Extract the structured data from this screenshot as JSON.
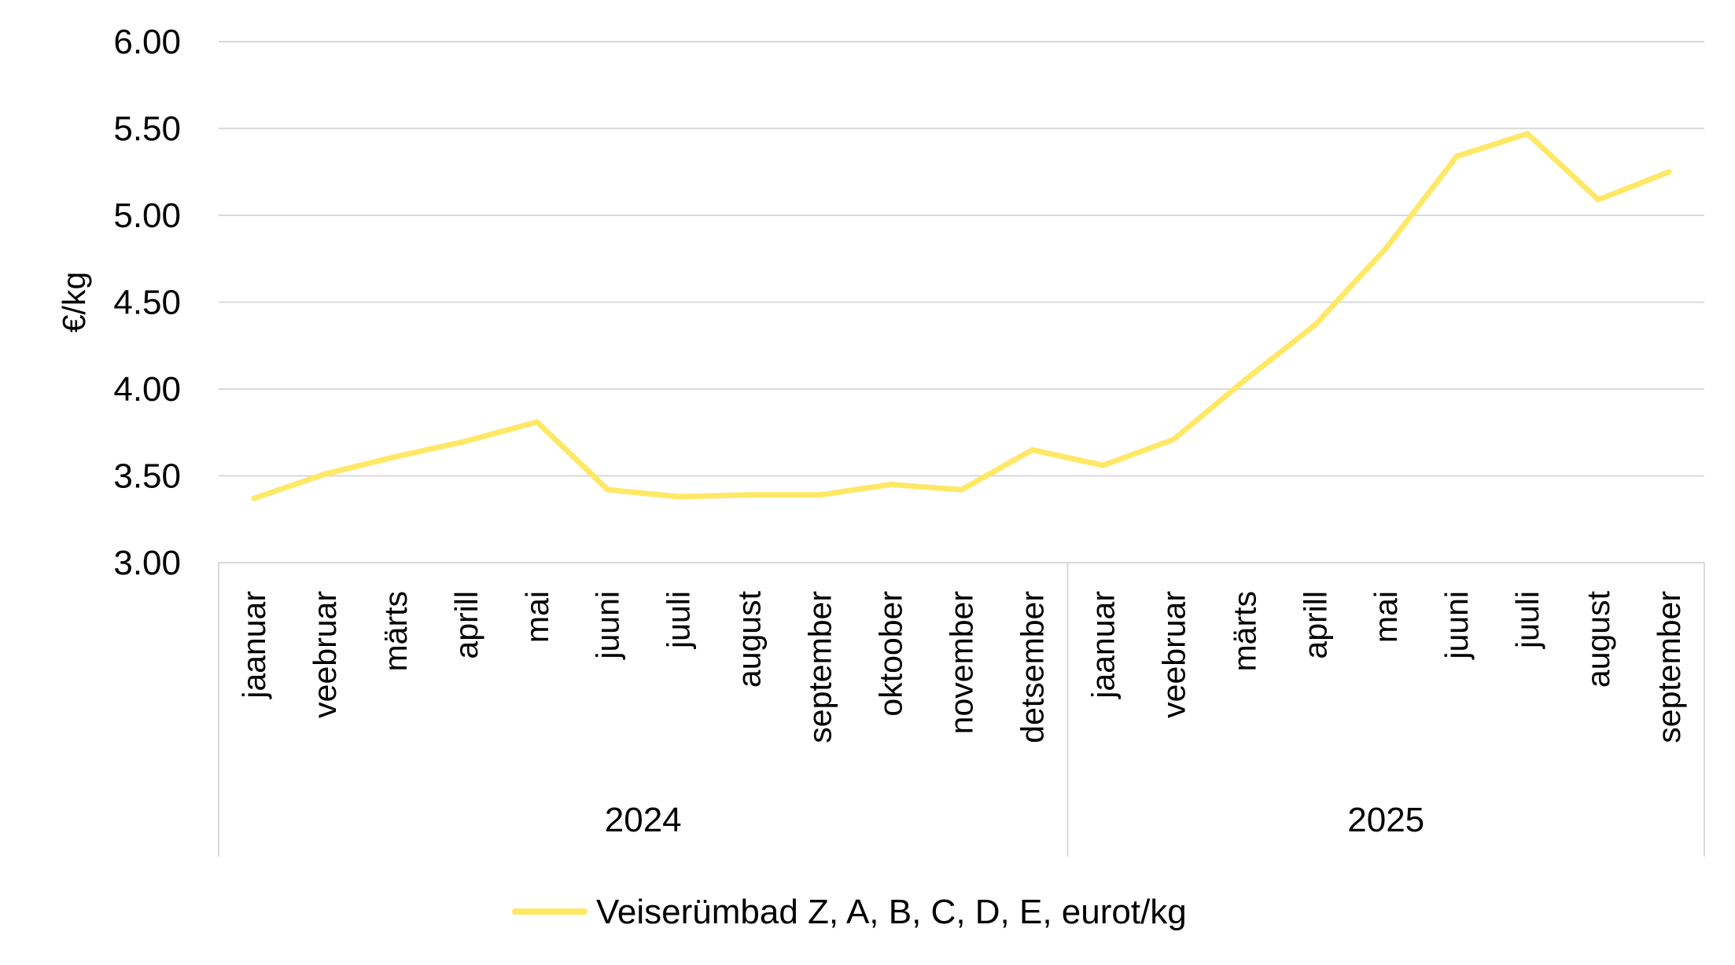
{
  "chart_data": {
    "type": "line",
    "title": "",
    "xlabel": "",
    "ylabel": "€/kg",
    "ylim": [
      3.0,
      6.0
    ],
    "yticks": [
      "3.00",
      "3.50",
      "4.00",
      "4.50",
      "5.00",
      "5.50",
      "6.00"
    ],
    "ytick_values": [
      3.0,
      3.5,
      4.0,
      4.5,
      5.0,
      5.5,
      6.0
    ],
    "grid": true,
    "legend_position": "bottom",
    "categories": [
      "jaanuar",
      "veebruar",
      "märts",
      "aprill",
      "mai",
      "juuni",
      "juuli",
      "august",
      "september",
      "oktoober",
      "november",
      "detsember",
      "jaanuar",
      "veebruar",
      "märts",
      "aprill",
      "mai",
      "juuni",
      "juuli",
      "august",
      "september"
    ],
    "groups": [
      {
        "label": "2024",
        "count": 12
      },
      {
        "label": "2025",
        "count": 9
      }
    ],
    "series": [
      {
        "name": "Veiserümbad Z, A, B, C, D, E, eurot/kg",
        "color": "#ffe866",
        "values": [
          3.37,
          3.51,
          3.61,
          3.7,
          3.81,
          3.42,
          3.38,
          3.39,
          3.39,
          3.45,
          3.42,
          3.65,
          3.56,
          3.71,
          4.05,
          4.37,
          4.81,
          5.34,
          5.47,
          5.09,
          5.25
        ]
      }
    ]
  }
}
